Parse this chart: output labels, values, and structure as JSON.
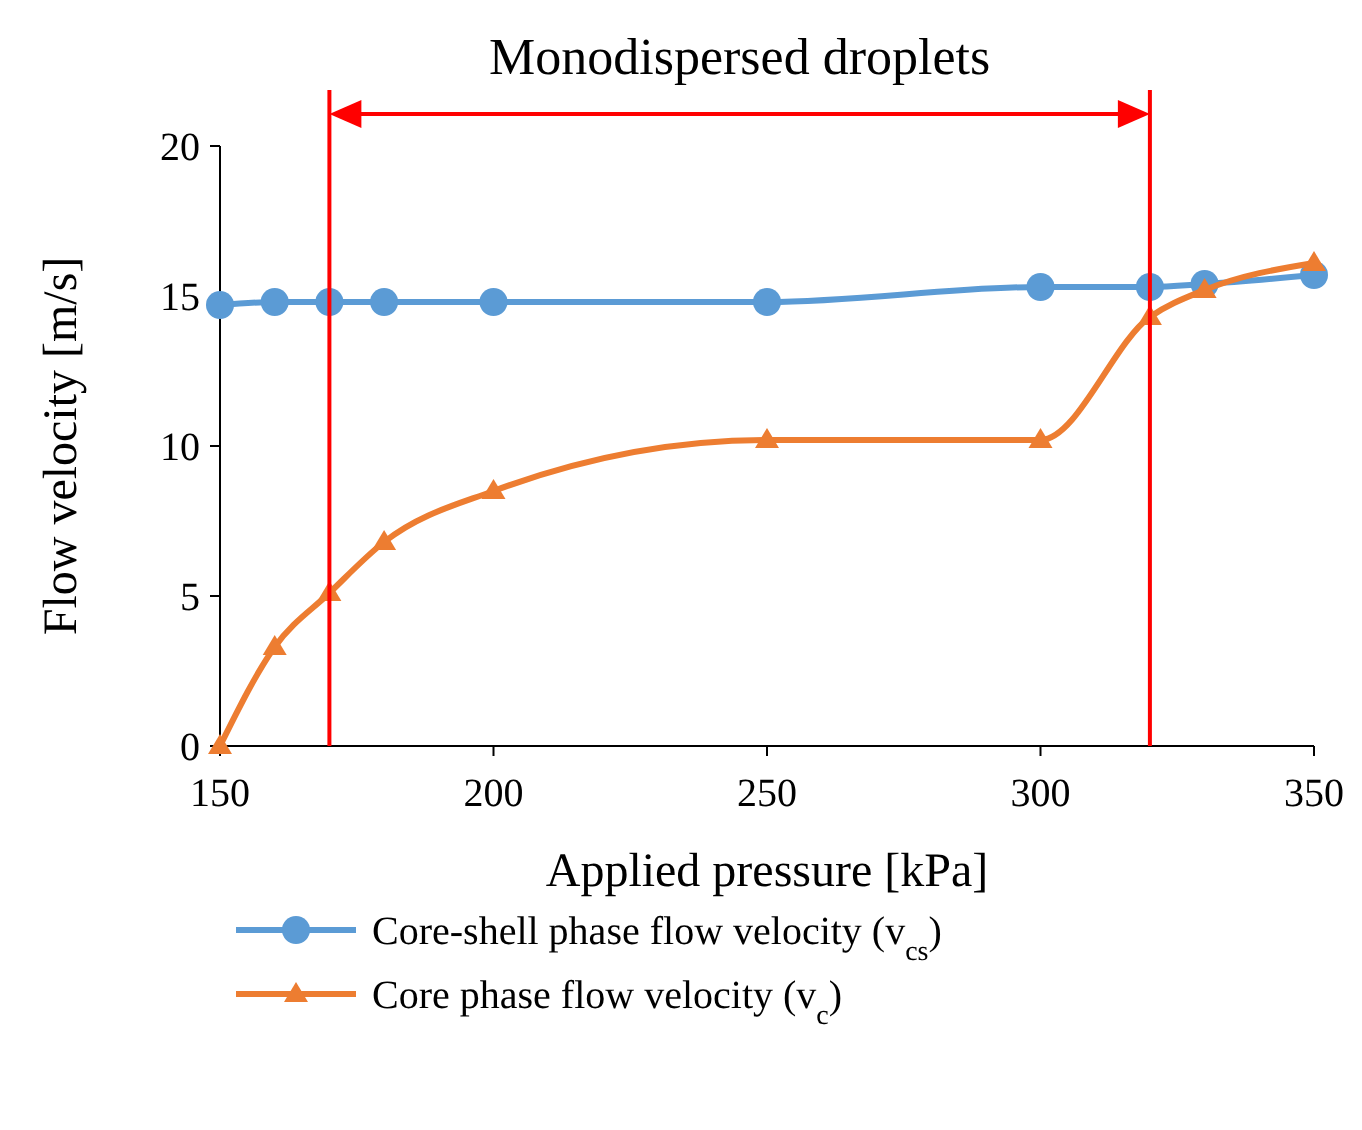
{
  "chart_data": {
    "type": "line",
    "xlabel": "Applied pressure [kPa]",
    "ylabel": "Flow velocity [m/s]",
    "xlim": [
      150,
      350
    ],
    "xticks": [
      150,
      200,
      250,
      300,
      350
    ],
    "ylim": [
      0,
      20
    ],
    "yticks": [
      0,
      5,
      10,
      15,
      20
    ],
    "grid": false,
    "legend": "bottom",
    "line_style": "solid",
    "series": [
      {
        "name": "Core-shell phase flow velocity (v$_{cs}$)",
        "color": "#5b9bd5",
        "marker": "circle",
        "x": [
          150,
          160,
          170,
          180,
          200,
          250,
          300,
          320,
          330,
          350
        ],
        "values": [
          14.7,
          14.8,
          14.8,
          14.8,
          14.8,
          14.8,
          15.3,
          15.3,
          15.4,
          15.7
        ]
      },
      {
        "name": "Core phase flow velocity (v$_{c}$)",
        "color": "#ed7d31",
        "marker": "triangle",
        "x": [
          150,
          160,
          170,
          180,
          200,
          250,
          300,
          320,
          330,
          350
        ],
        "values": [
          0,
          3.3,
          5.1,
          6.8,
          8.5,
          10.2,
          10.2,
          14.3,
          15.2,
          16.1
        ]
      }
    ],
    "ref_lines": [
      {
        "axis": "x",
        "value": 170,
        "color": "#ff0000"
      },
      {
        "axis": "x",
        "value": 320,
        "color": "#ff0000"
      }
    ],
    "annotations": [
      "Monodispersed droplets"
    ]
  }
}
